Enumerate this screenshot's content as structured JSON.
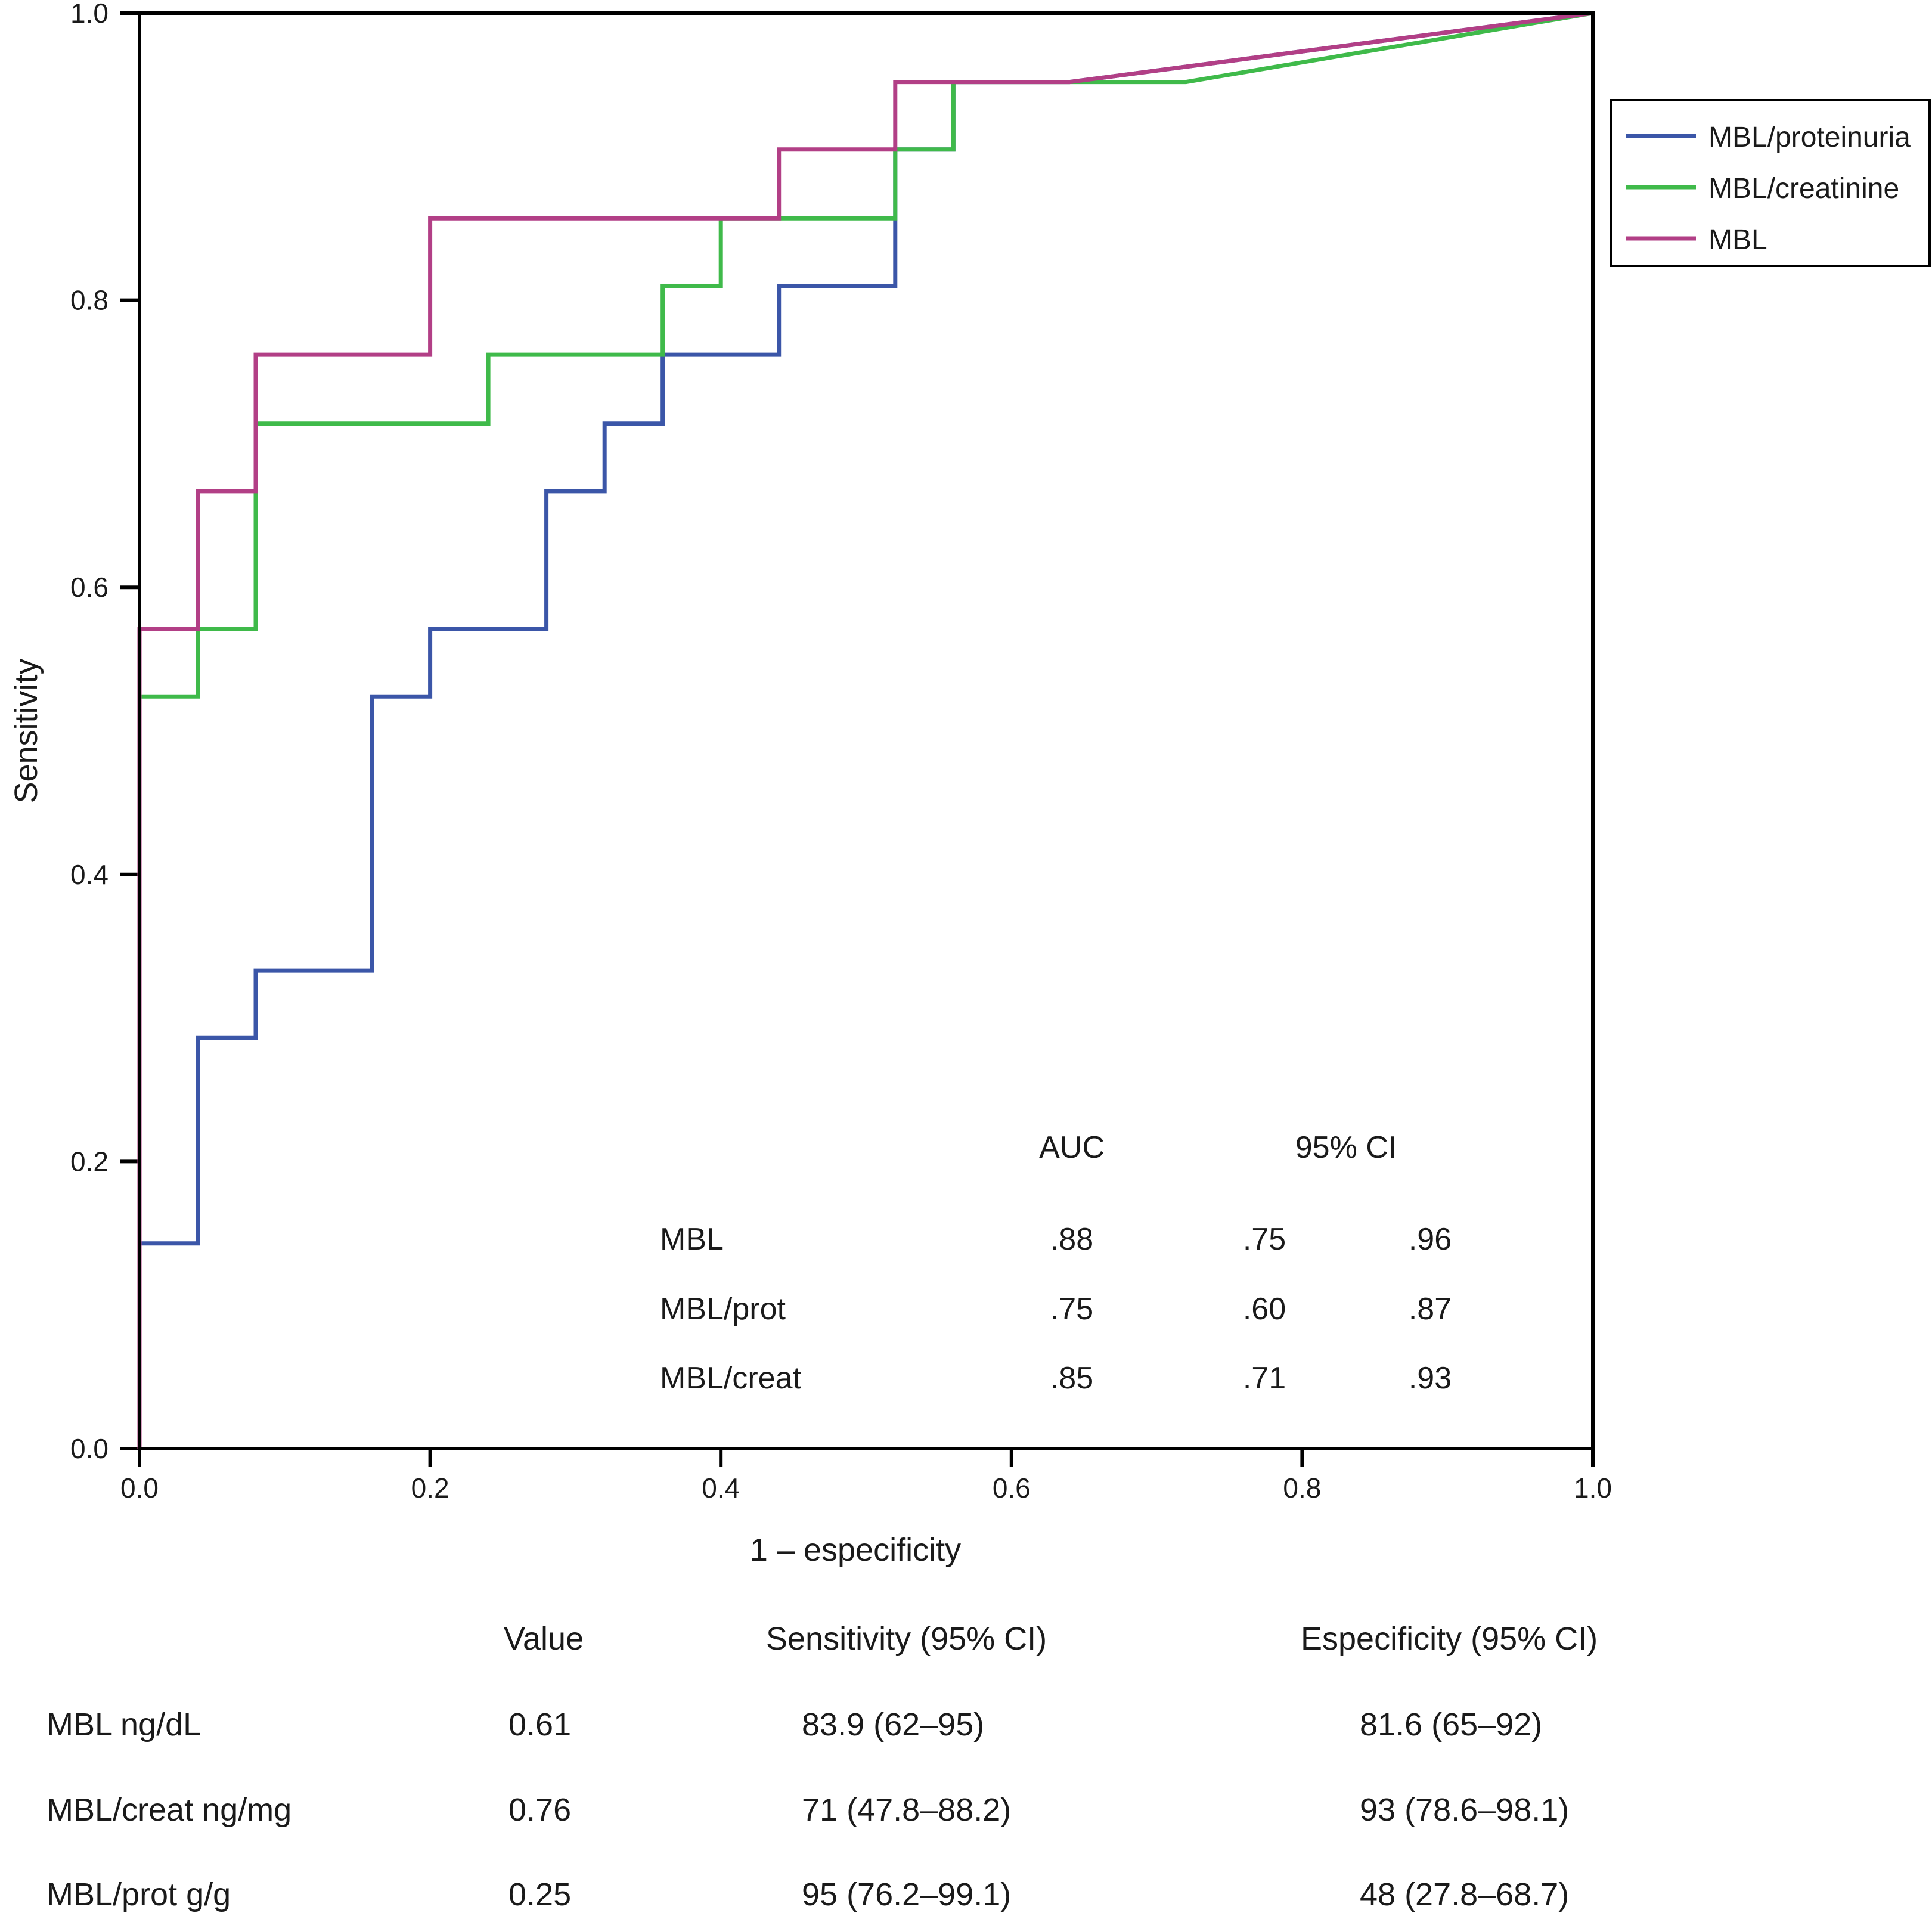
{
  "chart_data": {
    "type": "line",
    "xlabel": "1 – especificity",
    "ylabel": "Sensitivity",
    "xlim": [
      0,
      1
    ],
    "ylim": [
      0,
      1
    ],
    "xticks": [
      "0.0",
      "0.2",
      "0.4",
      "0.6",
      "0.8",
      "1.0"
    ],
    "yticks": [
      "0.0",
      "0.2",
      "0.4",
      "0.6",
      "0.8",
      "1.0"
    ],
    "legend_position": "right",
    "series": [
      {
        "name": "MBL/proteinuria",
        "color": "#3b56a8",
        "x": [
          0,
          0,
          0.04,
          0.04,
          0.08,
          0.08,
          0.16,
          0.16,
          0.2,
          0.2,
          0.28,
          0.28,
          0.32,
          0.32,
          0.36,
          0.36,
          0.44,
          0.44,
          0.52,
          0.52,
          0.56,
          0.56,
          0.64,
          1.0
        ],
        "y": [
          0,
          0.143,
          0.143,
          0.286,
          0.286,
          0.333,
          0.333,
          0.524,
          0.524,
          0.571,
          0.571,
          0.667,
          0.667,
          0.714,
          0.714,
          0.762,
          0.762,
          0.81,
          0.81,
          0.905,
          0.905,
          0.952,
          0.952,
          1.0
        ]
      },
      {
        "name": "MBL/creatinine",
        "color": "#3fba4a",
        "x": [
          0,
          0,
          0.04,
          0.04,
          0.08,
          0.08,
          0.24,
          0.24,
          0.36,
          0.36,
          0.4,
          0.4,
          0.52,
          0.52,
          0.56,
          0.56,
          0.72,
          1.0
        ],
        "y": [
          0,
          0.524,
          0.524,
          0.571,
          0.571,
          0.714,
          0.714,
          0.762,
          0.762,
          0.81,
          0.81,
          0.857,
          0.857,
          0.905,
          0.905,
          0.952,
          0.952,
          1.0
        ]
      },
      {
        "name": "MBL",
        "color": "#b23f86",
        "x": [
          0,
          0,
          0.04,
          0.04,
          0.08,
          0.08,
          0.2,
          0.2,
          0.44,
          0.44,
          0.52,
          0.52,
          0.64,
          1.0
        ],
        "y": [
          0,
          0.571,
          0.571,
          0.667,
          0.667,
          0.762,
          0.762,
          0.857,
          0.857,
          0.905,
          0.905,
          0.952,
          0.952,
          1.0
        ]
      }
    ],
    "auc_table": {
      "headers": [
        "",
        "AUC",
        "95% CI",
        ""
      ],
      "rows": [
        [
          "MBL",
          ".88",
          ".75",
          ".96"
        ],
        [
          "MBL/prot",
          ".75",
          ".60",
          ".87"
        ],
        [
          "MBL/creat",
          ".85",
          ".71",
          ".93"
        ]
      ]
    }
  },
  "cutoff_table": {
    "headers": [
      "",
      "Value",
      "Sensitivity (95% CI)",
      "Especificity (95% CI)"
    ],
    "rows": [
      [
        "MBL ng/dL",
        "0.61",
        "83.9 (62–95)",
        "81.6 (65–92)"
      ],
      [
        "MBL/creat ng/mg",
        "0.76",
        "71 (47.8–88.2)",
        "93 (78.6–98.1)"
      ],
      [
        "MBL/prot g/g",
        "0.25",
        "95 (76.2–99.1)",
        "48 (27.8–68.7)"
      ]
    ]
  }
}
